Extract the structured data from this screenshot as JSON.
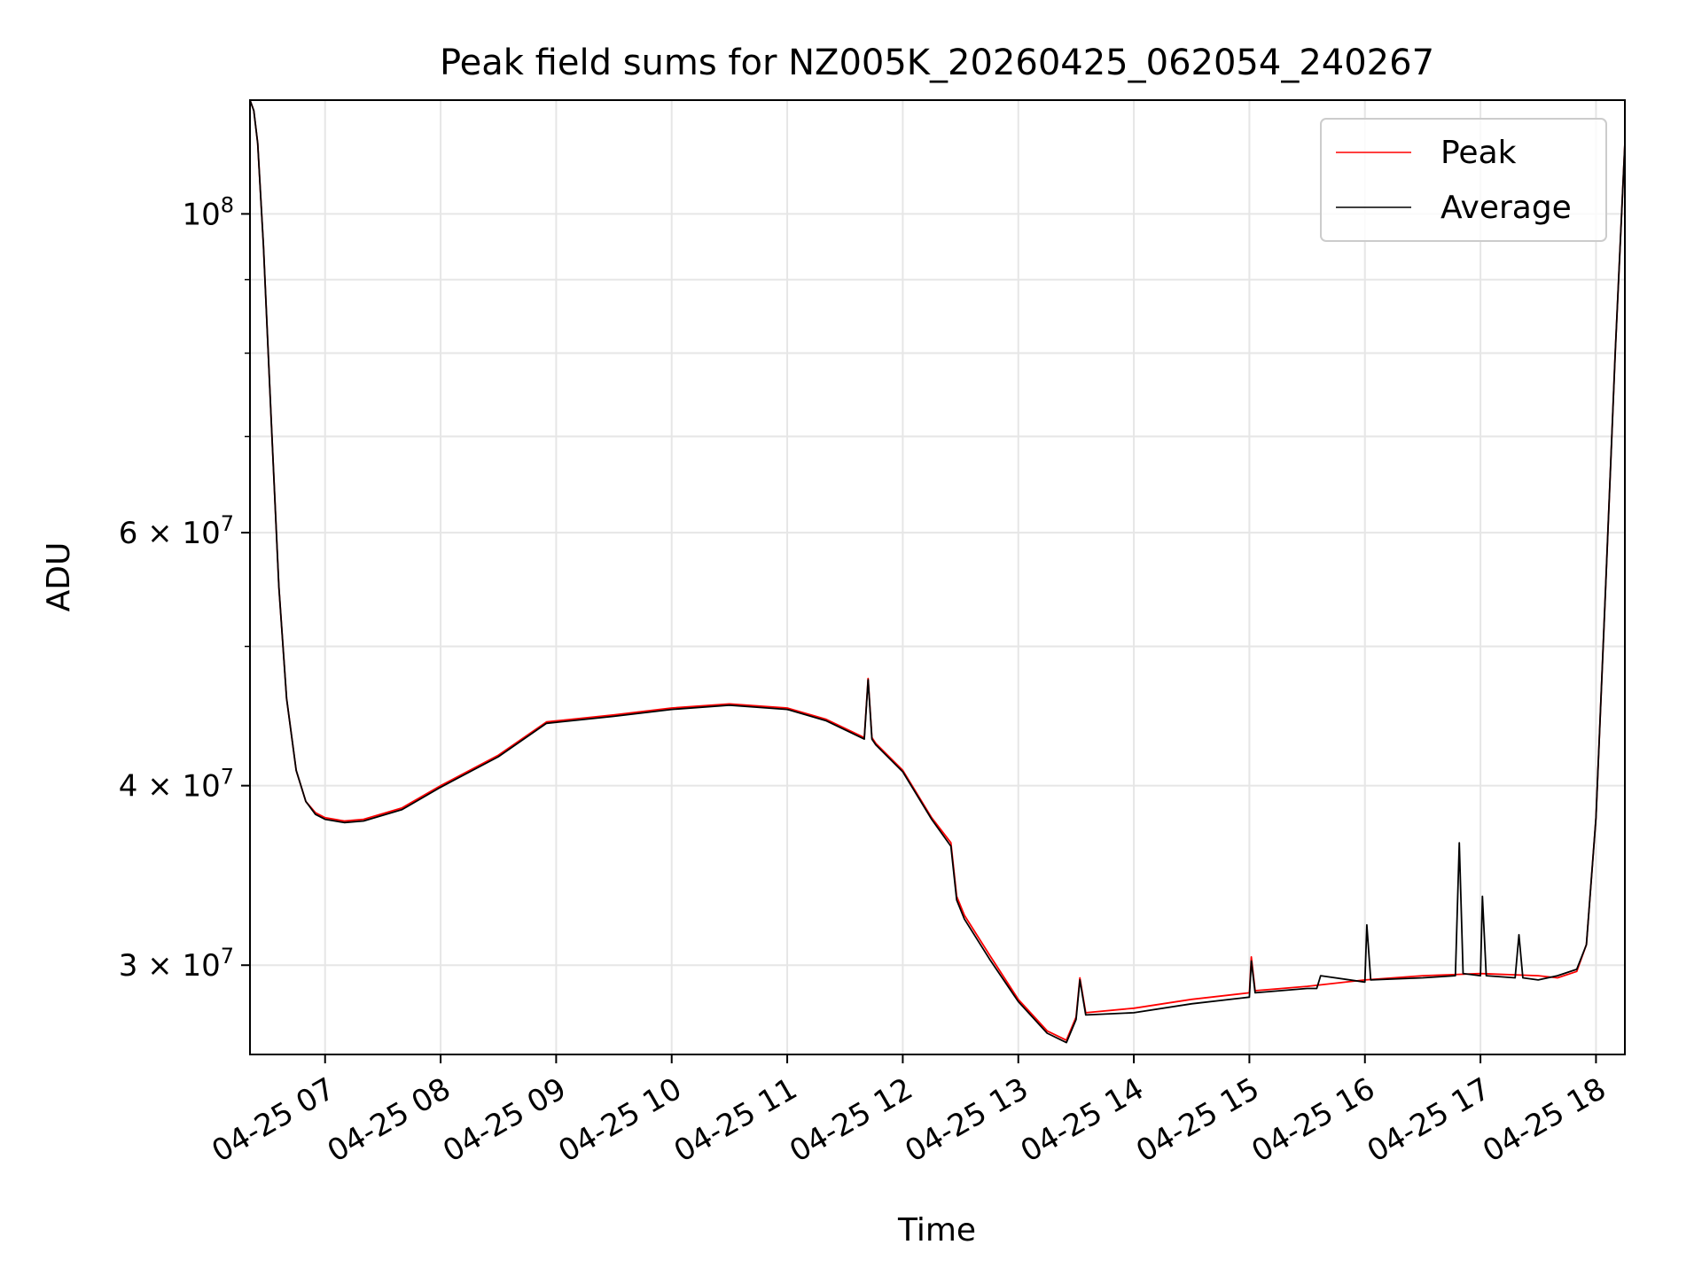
{
  "chart_data": {
    "type": "line",
    "title": "Peak field sums for NZ005K_20260425_062054_240267",
    "xlabel": "Time",
    "ylabel": "ADU",
    "yscale": "log",
    "xlim": [
      "2026-04-25 06:21",
      "2026-04-25 18:15"
    ],
    "ylim": [
      26000000,
      120000000
    ],
    "grid": true,
    "legend_position": "top-right",
    "x_ticks": [
      {
        "t": "2026-04-25 07:00",
        "label": "04-25 07"
      },
      {
        "t": "2026-04-25 08:00",
        "label": "04-25 08"
      },
      {
        "t": "2026-04-25 09:00",
        "label": "04-25 09"
      },
      {
        "t": "2026-04-25 10:00",
        "label": "04-25 10"
      },
      {
        "t": "2026-04-25 11:00",
        "label": "04-25 11"
      },
      {
        "t": "2026-04-25 12:00",
        "label": "04-25 12"
      },
      {
        "t": "2026-04-25 13:00",
        "label": "04-25 13"
      },
      {
        "t": "2026-04-25 14:00",
        "label": "04-25 14"
      },
      {
        "t": "2026-04-25 15:00",
        "label": "04-25 15"
      },
      {
        "t": "2026-04-25 16:00",
        "label": "04-25 16"
      },
      {
        "t": "2026-04-25 17:00",
        "label": "04-25 17"
      },
      {
        "t": "2026-04-25 18:00",
        "label": "04-25 18"
      }
    ],
    "y_ticks": [
      {
        "value": 100000000,
        "base": "10",
        "exp": "8",
        "mantissa": ""
      },
      {
        "value": 60000000,
        "base": "10",
        "exp": "7",
        "mantissa": "6 × "
      },
      {
        "value": 40000000,
        "base": "10",
        "exp": "7",
        "mantissa": "4 × "
      },
      {
        "value": 30000000,
        "base": "10",
        "exp": "7",
        "mantissa": "3 × "
      }
    ],
    "y_minor_ticks": [
      50000000,
      70000000,
      80000000,
      90000000
    ],
    "series": [
      {
        "name": "Peak",
        "color": "#ff0000",
        "x": [
          "2026-04-25 06:21",
          "2026-04-25 06:23",
          "2026-04-25 06:25",
          "2026-04-25 06:28",
          "2026-04-25 06:32",
          "2026-04-25 06:36",
          "2026-04-25 06:40",
          "2026-04-25 06:45",
          "2026-04-25 06:50",
          "2026-04-25 06:55",
          "2026-04-25 07:00",
          "2026-04-25 07:10",
          "2026-04-25 07:20",
          "2026-04-25 07:40",
          "2026-04-25 08:00",
          "2026-04-25 08:30",
          "2026-04-25 08:55",
          "2026-04-25 09:30",
          "2026-04-25 10:00",
          "2026-04-25 10:30",
          "2026-04-25 11:00",
          "2026-04-25 11:20",
          "2026-04-25 11:40",
          "2026-04-25 11:42",
          "2026-04-25 11:44",
          "2026-04-25 11:46",
          "2026-04-25 12:00",
          "2026-04-25 12:15",
          "2026-04-25 12:25",
          "2026-04-25 12:28",
          "2026-04-25 12:32",
          "2026-04-25 12:45",
          "2026-04-25 13:00",
          "2026-04-25 13:15",
          "2026-04-25 13:25",
          "2026-04-25 13:30",
          "2026-04-25 13:32",
          "2026-04-25 13:35",
          "2026-04-25 14:00",
          "2026-04-25 14:30",
          "2026-04-25 15:00",
          "2026-04-25 15:01",
          "2026-04-25 15:03",
          "2026-04-25 15:30",
          "2026-04-25 16:00",
          "2026-04-25 16:30",
          "2026-04-25 17:00",
          "2026-04-25 17:30",
          "2026-04-25 17:40",
          "2026-04-25 17:50",
          "2026-04-25 17:55",
          "2026-04-25 18:00",
          "2026-04-25 18:05",
          "2026-04-25 18:10",
          "2026-04-25 18:15"
        ],
        "y": [
          120000000,
          118000000,
          112000000,
          95000000,
          72000000,
          55000000,
          46000000,
          41000000,
          39000000,
          38300000,
          38000000,
          37800000,
          37900000,
          38600000,
          40000000,
          42000000,
          44300000,
          44800000,
          45300000,
          45600000,
          45300000,
          44500000,
          43200000,
          47500000,
          43200000,
          42800000,
          41000000,
          38000000,
          36500000,
          33500000,
          32500000,
          30500000,
          28400000,
          27000000,
          26600000,
          27600000,
          29400000,
          27800000,
          28000000,
          28400000,
          28700000,
          30400000,
          28800000,
          29000000,
          29300000,
          29500000,
          29600000,
          29500000,
          29400000,
          29700000,
          31000000,
          38000000,
          55000000,
          80000000,
          112000000
        ]
      },
      {
        "name": "Average",
        "color": "#000000",
        "x": [
          "2026-04-25 06:21",
          "2026-04-25 06:23",
          "2026-04-25 06:25",
          "2026-04-25 06:28",
          "2026-04-25 06:32",
          "2026-04-25 06:36",
          "2026-04-25 06:40",
          "2026-04-25 06:45",
          "2026-04-25 06:50",
          "2026-04-25 06:55",
          "2026-04-25 07:00",
          "2026-04-25 07:10",
          "2026-04-25 07:20",
          "2026-04-25 07:40",
          "2026-04-25 08:00",
          "2026-04-25 08:30",
          "2026-04-25 08:55",
          "2026-04-25 09:30",
          "2026-04-25 10:00",
          "2026-04-25 10:30",
          "2026-04-25 11:00",
          "2026-04-25 11:20",
          "2026-04-25 11:40",
          "2026-04-25 11:42",
          "2026-04-25 11:44",
          "2026-04-25 11:46",
          "2026-04-25 12:00",
          "2026-04-25 12:15",
          "2026-04-25 12:25",
          "2026-04-25 12:28",
          "2026-04-25 12:32",
          "2026-04-25 12:45",
          "2026-04-25 13:00",
          "2026-04-25 13:15",
          "2026-04-25 13:25",
          "2026-04-25 13:30",
          "2026-04-25 13:32",
          "2026-04-25 13:35",
          "2026-04-25 14:00",
          "2026-04-25 14:30",
          "2026-04-25 15:00",
          "2026-04-25 15:01",
          "2026-04-25 15:03",
          "2026-04-25 15:30",
          "2026-04-25 15:35",
          "2026-04-25 15:37",
          "2026-04-25 16:00",
          "2026-04-25 16:01",
          "2026-04-25 16:03",
          "2026-04-25 16:30",
          "2026-04-25 16:47",
          "2026-04-25 16:49",
          "2026-04-25 16:51",
          "2026-04-25 17:00",
          "2026-04-25 17:01",
          "2026-04-25 17:03",
          "2026-04-25 17:18",
          "2026-04-25 17:20",
          "2026-04-25 17:22",
          "2026-04-25 17:30",
          "2026-04-25 17:40",
          "2026-04-25 17:50",
          "2026-04-25 17:55",
          "2026-04-25 18:00",
          "2026-04-25 18:05",
          "2026-04-25 18:10",
          "2026-04-25 18:15"
        ],
        "y": [
          120000000,
          118000000,
          112000000,
          95000000,
          72000000,
          55000000,
          46000000,
          41000000,
          39000000,
          38200000,
          37900000,
          37700000,
          37800000,
          38500000,
          39900000,
          41900000,
          44200000,
          44700000,
          45200000,
          45500000,
          45200000,
          44400000,
          43100000,
          47400000,
          43100000,
          42700000,
          40900000,
          37900000,
          36300000,
          33300000,
          32300000,
          30300000,
          28300000,
          26900000,
          26500000,
          27500000,
          29300000,
          27700000,
          27800000,
          28200000,
          28500000,
          30200000,
          28700000,
          28900000,
          28900000,
          29500000,
          29200000,
          32000000,
          29300000,
          29400000,
          29500000,
          36500000,
          29600000,
          29500000,
          33500000,
          29500000,
          29400000,
          31500000,
          29400000,
          29300000,
          29500000,
          29800000,
          31000000,
          38000000,
          55000000,
          80000000,
          112000000
        ]
      }
    ]
  }
}
